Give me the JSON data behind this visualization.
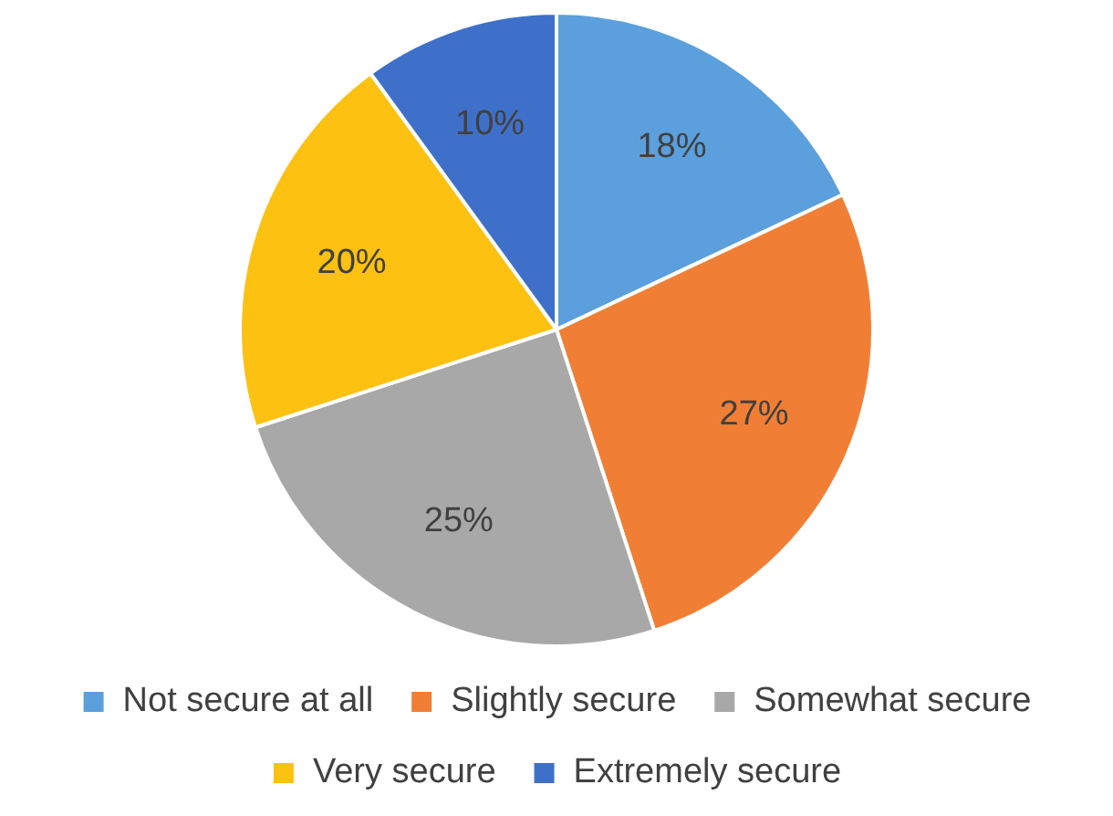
{
  "chart_data": {
    "type": "pie",
    "categories": [
      "Not secure at all",
      "Slightly secure",
      "Somewhat secure",
      "Very secure",
      "Extremely secure"
    ],
    "values": [
      18,
      27,
      25,
      20,
      10
    ],
    "value_labels": [
      "18%",
      "27%",
      "25%",
      "20%",
      "10%"
    ],
    "colors": [
      "#5b9fdd",
      "#f07f35",
      "#a8a8a8",
      "#fdc112",
      "#3f70c9"
    ],
    "legend": "bottom"
  }
}
